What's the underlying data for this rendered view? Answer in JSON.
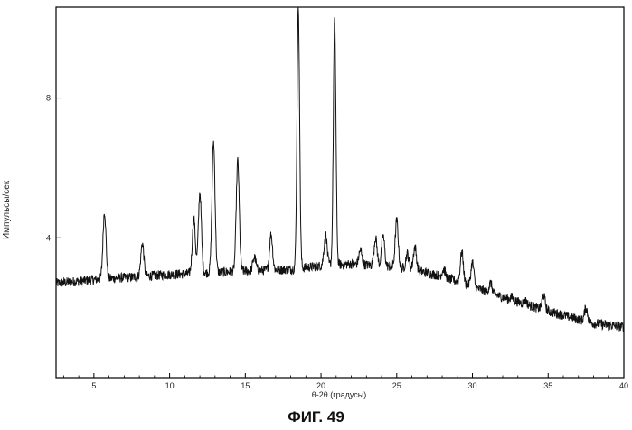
{
  "chart_data": {
    "type": "line",
    "xlabel": "θ-2θ (градусы)",
    "ylabel": "Импульсы/сек",
    "xlim": [
      2.5,
      40
    ],
    "ylim": [
      0,
      10.6
    ],
    "x_ticks": [
      5,
      10,
      15,
      20,
      25,
      30,
      35,
      40
    ],
    "y_ticks": [
      4,
      8
    ],
    "y_tick_labels": [
      "4",
      "8"
    ],
    "x_tick_labels": [
      "5",
      "10",
      "15",
      "20",
      "25",
      "30",
      "35",
      "40"
    ],
    "grid": false,
    "series": [
      {
        "baseline": [
          [
            2.5,
            2.7
          ],
          [
            5,
            2.8
          ],
          [
            10,
            2.95
          ],
          [
            15,
            3.05
          ],
          [
            18,
            3.1
          ],
          [
            20,
            3.2
          ],
          [
            22,
            3.25
          ],
          [
            24,
            3.2
          ],
          [
            26,
            3.1
          ],
          [
            28,
            2.9
          ],
          [
            30,
            2.6
          ],
          [
            32,
            2.3
          ],
          [
            35,
            1.9
          ],
          [
            38,
            1.55
          ],
          [
            40,
            1.45
          ]
        ],
        "peaks": [
          {
            "x": 5.7,
            "y": 4.75
          },
          {
            "x": 8.2,
            "y": 3.85
          },
          {
            "x": 11.6,
            "y": 4.55
          },
          {
            "x": 12.0,
            "y": 5.3
          },
          {
            "x": 12.9,
            "y": 6.75
          },
          {
            "x": 14.5,
            "y": 6.2
          },
          {
            "x": 15.6,
            "y": 3.45
          },
          {
            "x": 16.7,
            "y": 4.1
          },
          {
            "x": 18.5,
            "y": 10.6
          },
          {
            "x": 20.3,
            "y": 4.1
          },
          {
            "x": 20.9,
            "y": 10.2
          },
          {
            "x": 22.6,
            "y": 3.65
          },
          {
            "x": 23.6,
            "y": 4.0
          },
          {
            "x": 24.1,
            "y": 4.05
          },
          {
            "x": 25.0,
            "y": 4.5
          },
          {
            "x": 25.7,
            "y": 3.55
          },
          {
            "x": 26.2,
            "y": 3.75
          },
          {
            "x": 28.1,
            "y": 3.1
          },
          {
            "x": 29.3,
            "y": 3.6
          },
          {
            "x": 30.0,
            "y": 3.3
          },
          {
            "x": 31.2,
            "y": 2.7
          },
          {
            "x": 32.6,
            "y": 2.3
          },
          {
            "x": 33.5,
            "y": 2.2
          },
          {
            "x": 34.7,
            "y": 2.35
          },
          {
            "x": 37.5,
            "y": 2.0
          }
        ]
      }
    ]
  },
  "caption": "ФИГ. 49"
}
